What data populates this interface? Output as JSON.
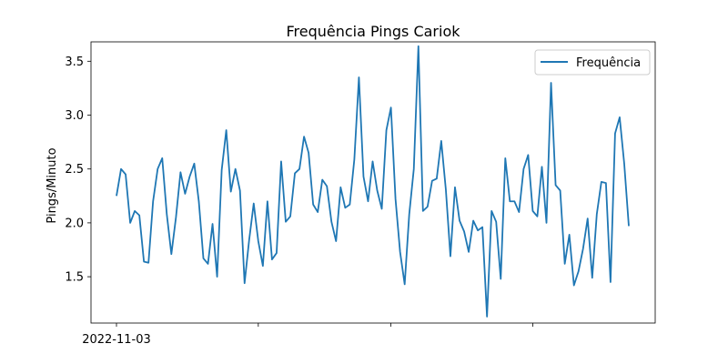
{
  "chart_data": {
    "type": "line",
    "title": "Frequência Pings Cariok",
    "xlabel": "",
    "ylabel": "Pings/Minuto",
    "x_tick_labels": [
      "2022-11-03",
      "",
      "",
      ""
    ],
    "y_ticks": [
      1.5,
      2.0,
      2.5,
      3.0,
      3.5
    ],
    "y_tick_labels": [
      "1.5",
      "2.0",
      "2.5",
      "3.0",
      "3.5"
    ],
    "ylim": [
      1.07,
      3.68
    ],
    "grid": false,
    "legend_position": "top-right",
    "series": [
      {
        "name": "Frequência",
        "color": "#1f77b4",
        "values": [
          2.25,
          2.5,
          2.45,
          2.0,
          2.11,
          2.07,
          1.64,
          1.63,
          2.2,
          2.5,
          2.6,
          2.08,
          1.71,
          2.05,
          2.47,
          2.27,
          2.43,
          2.55,
          2.2,
          1.67,
          1.62,
          1.99,
          1.5,
          2.49,
          2.86,
          2.29,
          2.5,
          2.3,
          1.44,
          1.84,
          2.18,
          1.83,
          1.6,
          2.2,
          1.66,
          1.72,
          2.57,
          2.01,
          2.06,
          2.46,
          2.5,
          2.8,
          2.65,
          2.17,
          2.1,
          2.4,
          2.34,
          2.01,
          1.83,
          2.33,
          2.14,
          2.17,
          2.59,
          3.35,
          2.43,
          2.2,
          2.57,
          2.3,
          2.13,
          2.86,
          3.07,
          2.22,
          1.73,
          1.43,
          2.08,
          2.5,
          3.64,
          2.11,
          2.15,
          2.39,
          2.41,
          2.76,
          2.31,
          1.69,
          2.33,
          2.02,
          1.92,
          1.73,
          2.02,
          1.93,
          1.96,
          1.13,
          2.11,
          2.01,
          1.48,
          2.6,
          2.2,
          2.2,
          2.1,
          2.5,
          2.63,
          2.11,
          2.06,
          2.52,
          2.0,
          3.3,
          2.35,
          2.3,
          1.62,
          1.89,
          1.42,
          1.55,
          1.76,
          2.04,
          1.49,
          2.08,
          2.38,
          2.37,
          1.45,
          2.83,
          2.98,
          2.55,
          1.97
        ]
      }
    ]
  }
}
